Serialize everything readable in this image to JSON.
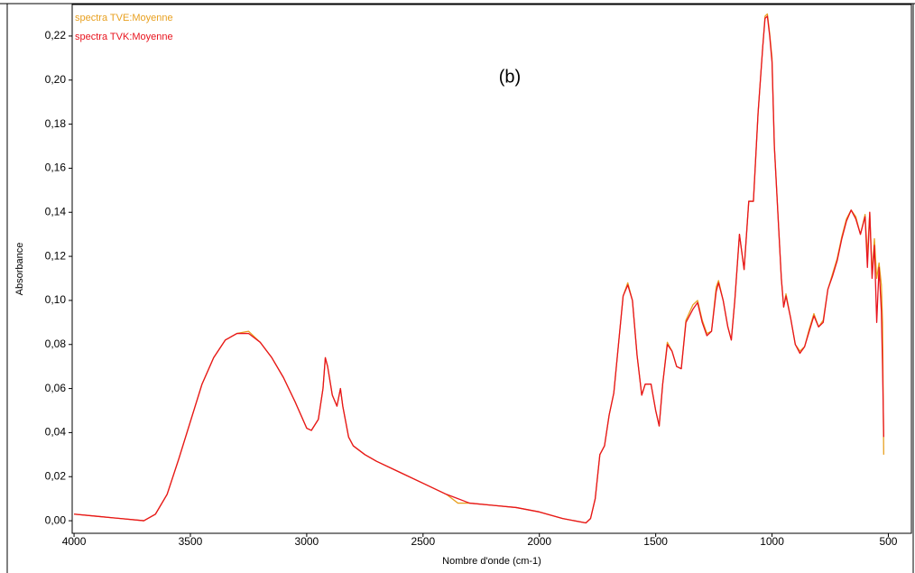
{
  "chart_data": {
    "type": "line",
    "annotation": "(b)",
    "x_label": "Nombre d'onde (cm-1)",
    "y_label": "Absorbance",
    "xlim": [
      4008,
      401
    ],
    "ylim": [
      -0.0057,
      0.2343
    ],
    "xticks": [
      4000,
      3500,
      3000,
      2500,
      2000,
      1500,
      1000,
      500
    ],
    "yticks": [
      {
        "value": 0,
        "label": "0,00"
      },
      {
        "value": 0.02,
        "label": "0,02"
      },
      {
        "value": 0.04,
        "label": "0,04"
      },
      {
        "value": 0.06,
        "label": "0,06"
      },
      {
        "value": 0.08,
        "label": "0,08"
      },
      {
        "value": 0.1,
        "label": "0,10"
      },
      {
        "value": 0.12,
        "label": "0,12"
      },
      {
        "value": 0.14,
        "label": "0,14"
      },
      {
        "value": 0.16,
        "label": "0,16"
      },
      {
        "value": 0.18,
        "label": "0,18"
      },
      {
        "value": 0.2,
        "label": "0,20"
      },
      {
        "value": 0.22,
        "label": "0,22"
      }
    ],
    "grid": false,
    "x": [
      4000,
      3900,
      3800,
      3700,
      3650,
      3600,
      3550,
      3500,
      3450,
      3400,
      3350,
      3300,
      3250,
      3200,
      3150,
      3100,
      3050,
      3000,
      2980,
      2950,
      2930,
      2920,
      2910,
      2890,
      2870,
      2855,
      2845,
      2820,
      2800,
      2750,
      2700,
      2600,
      2500,
      2400,
      2350,
      2300,
      2200,
      2100,
      2000,
      1900,
      1800,
      1780,
      1760,
      1740,
      1720,
      1700,
      1680,
      1660,
      1640,
      1620,
      1600,
      1580,
      1560,
      1545,
      1520,
      1500,
      1485,
      1470,
      1450,
      1430,
      1410,
      1390,
      1370,
      1340,
      1320,
      1300,
      1280,
      1260,
      1240,
      1230,
      1210,
      1190,
      1175,
      1160,
      1140,
      1120,
      1100,
      1080,
      1060,
      1040,
      1030,
      1020,
      1010,
      1000,
      990,
      975,
      960,
      950,
      940,
      920,
      900,
      880,
      860,
      840,
      820,
      800,
      780,
      760,
      740,
      720,
      700,
      680,
      660,
      640,
      620,
      600,
      590,
      580,
      570,
      560,
      550,
      540,
      530,
      525,
      520
    ],
    "series": [
      {
        "name": "spectra TVE:Moyenne",
        "color": "#e8a020",
        "values": [
          0.003,
          0.002,
          0.001,
          0.0,
          0.003,
          0.012,
          0.028,
          0.045,
          0.062,
          0.074,
          0.082,
          0.085,
          0.086,
          0.081,
          0.074,
          0.065,
          0.054,
          0.042,
          0.041,
          0.046,
          0.06,
          0.074,
          0.07,
          0.057,
          0.052,
          0.06,
          0.052,
          0.038,
          0.034,
          0.03,
          0.027,
          0.022,
          0.017,
          0.012,
          0.008,
          0.008,
          0.007,
          0.006,
          0.004,
          0.001,
          -0.001,
          0.001,
          0.01,
          0.03,
          0.034,
          0.048,
          0.058,
          0.08,
          0.102,
          0.108,
          0.1,
          0.075,
          0.057,
          0.062,
          0.062,
          0.05,
          0.043,
          0.062,
          0.081,
          0.077,
          0.07,
          0.069,
          0.091,
          0.098,
          0.1,
          0.091,
          0.085,
          0.086,
          0.106,
          0.109,
          0.1,
          0.088,
          0.082,
          0.1,
          0.13,
          0.114,
          0.145,
          0.145,
          0.185,
          0.215,
          0.229,
          0.23,
          0.221,
          0.21,
          0.17,
          0.14,
          0.11,
          0.097,
          0.103,
          0.092,
          0.08,
          0.077,
          0.079,
          0.087,
          0.094,
          0.088,
          0.091,
          0.105,
          0.112,
          0.119,
          0.129,
          0.137,
          0.141,
          0.138,
          0.13,
          0.139,
          0.12,
          0.14,
          0.112,
          0.128,
          0.11,
          0.117,
          0.107,
          0.09,
          0.03
        ]
      },
      {
        "name": "spectra TVK:Moyenne",
        "color": "#e8141e",
        "values": [
          0.003,
          0.002,
          0.001,
          0.0,
          0.003,
          0.012,
          0.028,
          0.045,
          0.062,
          0.074,
          0.082,
          0.085,
          0.085,
          0.081,
          0.074,
          0.065,
          0.054,
          0.042,
          0.041,
          0.046,
          0.06,
          0.074,
          0.07,
          0.057,
          0.052,
          0.06,
          0.052,
          0.038,
          0.034,
          0.03,
          0.027,
          0.022,
          0.017,
          0.012,
          0.01,
          0.008,
          0.007,
          0.006,
          0.004,
          0.001,
          -0.001,
          0.001,
          0.01,
          0.03,
          0.034,
          0.048,
          0.058,
          0.08,
          0.102,
          0.107,
          0.1,
          0.075,
          0.057,
          0.062,
          0.062,
          0.05,
          0.043,
          0.062,
          0.08,
          0.077,
          0.07,
          0.069,
          0.09,
          0.096,
          0.099,
          0.09,
          0.084,
          0.086,
          0.104,
          0.108,
          0.1,
          0.088,
          0.082,
          0.1,
          0.13,
          0.114,
          0.145,
          0.145,
          0.185,
          0.215,
          0.228,
          0.229,
          0.22,
          0.208,
          0.17,
          0.14,
          0.11,
          0.097,
          0.102,
          0.092,
          0.08,
          0.076,
          0.079,
          0.086,
          0.093,
          0.088,
          0.09,
          0.105,
          0.111,
          0.118,
          0.128,
          0.136,
          0.141,
          0.137,
          0.13,
          0.138,
          0.115,
          0.14,
          0.11,
          0.125,
          0.09,
          0.115,
          0.095,
          0.07,
          0.038
        ]
      }
    ]
  }
}
